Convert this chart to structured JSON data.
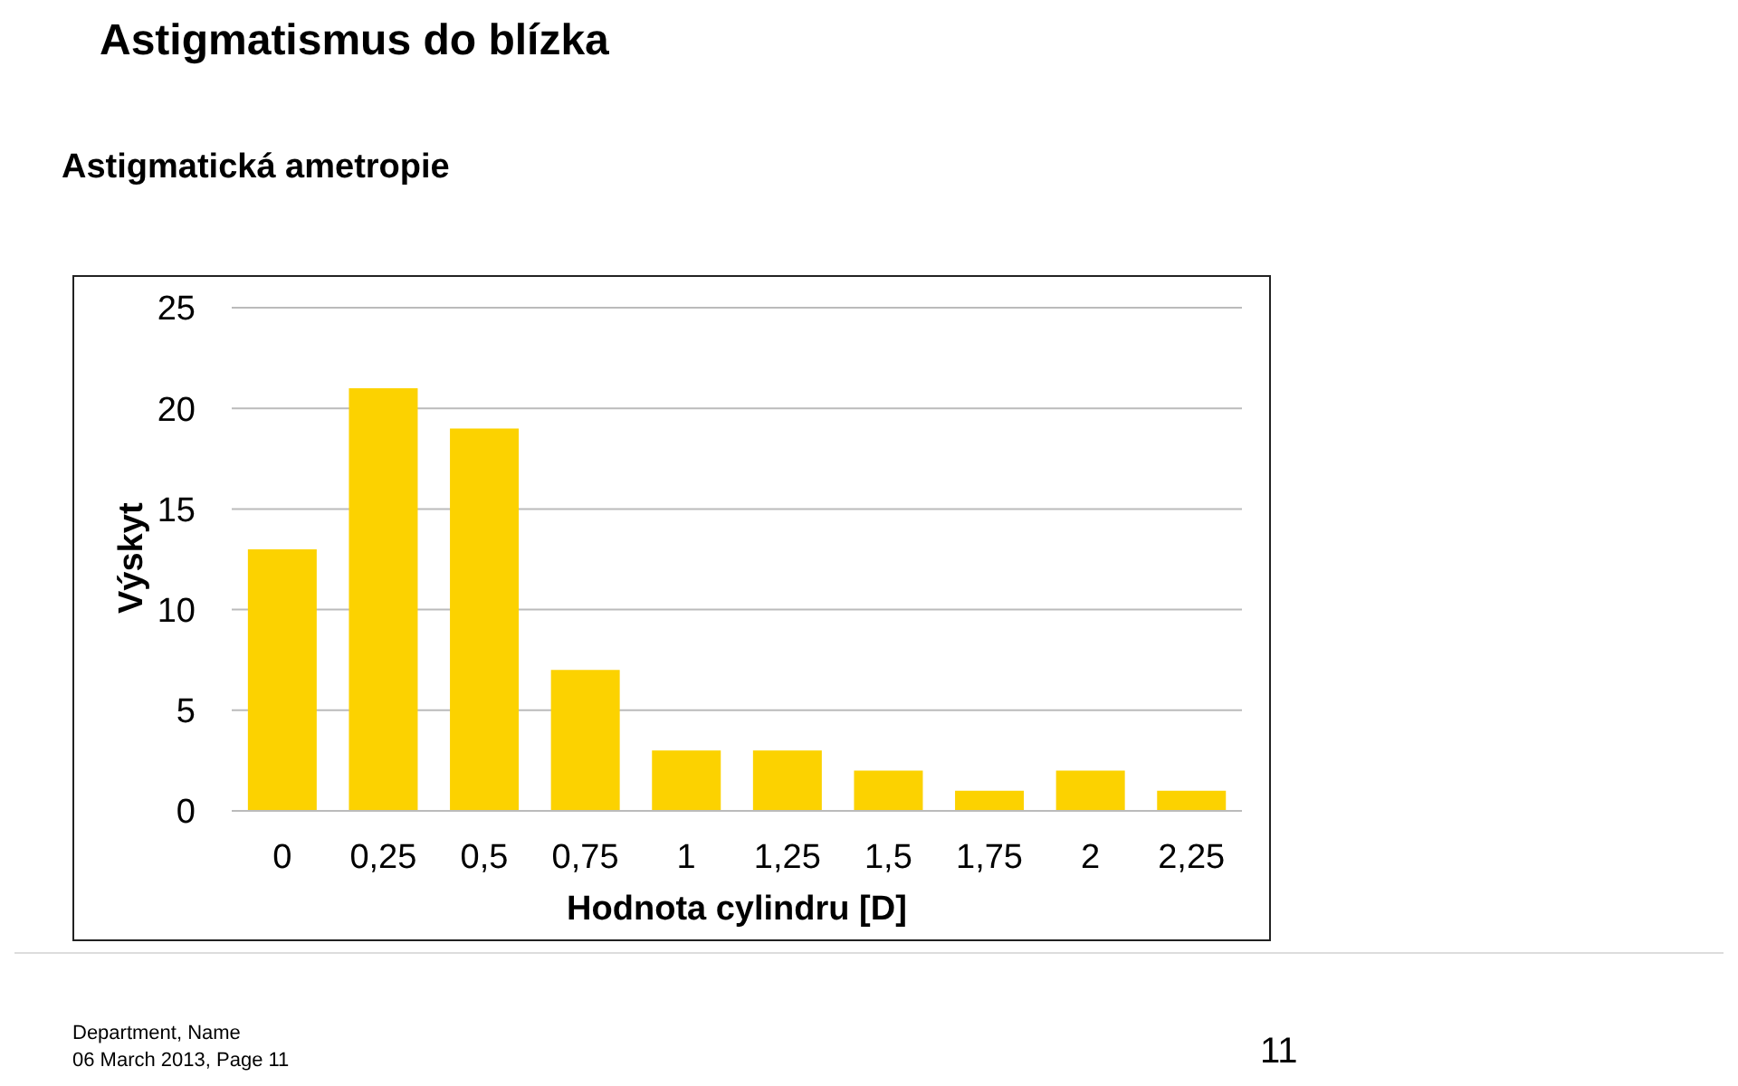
{
  "chart_data": {
    "type": "bar",
    "title": "Astigmatismus do blízka",
    "subtitle": "Astigmatická ametropie",
    "xlabel": "Hodnota cylindru [D]",
    "ylabel": "Výskyt",
    "categories": [
      "0",
      "0,25",
      "0,5",
      "0,75",
      "1",
      "1,25",
      "1,5",
      "1,75",
      "2",
      "2,25"
    ],
    "values": [
      13,
      21,
      19,
      7,
      3,
      3,
      2,
      1,
      2,
      1
    ],
    "color": "#fcd200",
    "ylim": [
      0,
      25
    ],
    "yticks": [
      0,
      5,
      10,
      15,
      20,
      25
    ],
    "grid": "y",
    "annotations": [
      "Department, Name",
      "06 March 2013, Page 11",
      "11"
    ]
  }
}
